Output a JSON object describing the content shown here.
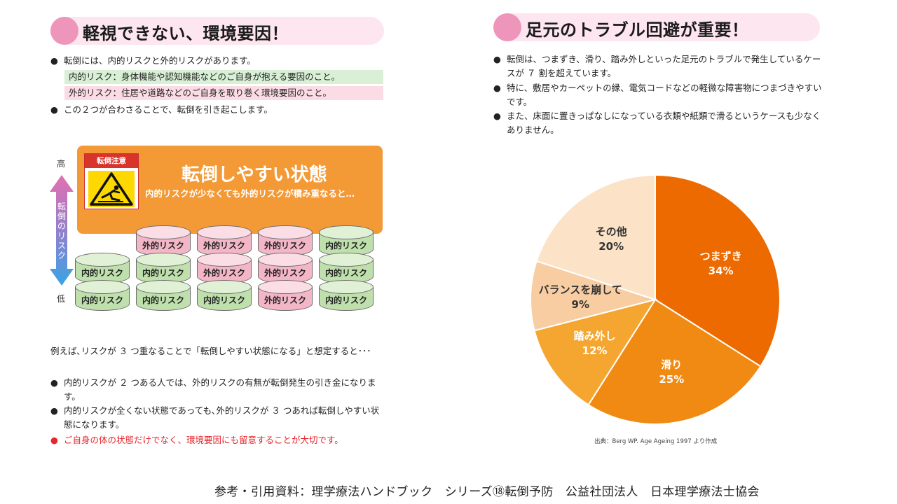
{
  "left": {
    "header": {
      "title": "軽視できない、環境要因！"
    },
    "intro": {
      "bullet1": "転倒には、内的リスクと外的リスクがあります。",
      "internal_def": "内的リスク：身体機能や認知機能などのご自身が抱える要因のこと。",
      "external_def": "外的リスク：住居や道路などのご自身を取り巻く環境要因のこと。",
      "bullet2": "この２つが合わさることで、転倒を引き起こします。"
    },
    "diagram": {
      "axis_high": "高",
      "axis_low": "低",
      "axis_label": "転倒のリスク",
      "warning_sign": "転倒注意",
      "panel_title": "転倒しやすい状態",
      "panel_subtitle": "内的リスクが少なくても外的リスクが積み重なると…",
      "stacks": [
        [
          "内的リスク",
          "内的リスク"
        ],
        [
          "内的リスク",
          "内的リスク",
          "外的リスク"
        ],
        [
          "内的リスク",
          "外的リスク",
          "外的リスク"
        ],
        [
          "外的リスク",
          "外的リスク",
          "外的リスク"
        ],
        [
          "内的リスク",
          "内的リスク",
          "内的リスク"
        ]
      ]
    },
    "example": "例えば､リスクが ３ つ重なることで「転倒しやすい状態になる」と想定すると･･･",
    "conclusions": [
      "内的リスクが ２ つある人では、外的リスクの有無が転倒発生の引き金になります。",
      "内的リスクが全くない状態であっても､外的リスクが ３ つあれば転倒しやすい状態になります。"
    ],
    "emphasis": "ご自身の体の状態だけでなく、環境要因にも留意することが大切です。"
  },
  "right": {
    "header": {
      "title": "足元のトラブル回避が重要！"
    },
    "bullets": [
      "転倒は、つまずき、滑り、踏み外しといった足元のトラブルで発生しているケースが ７ 割を超えています。",
      "特に、敷居やカーペットの縁、電気コードなどの軽微な障害物につまづきやすいです。",
      "また、床面に置きっぱなしになっている衣類や紙類で滑るというケースも少なくありません。"
    ],
    "source": "出典：Berg WP. Age Ageing 1997 より作成"
  },
  "chart_data": {
    "type": "pie",
    "slices": [
      {
        "label": "つまずき",
        "value": 34,
        "value_text": "34%",
        "color": "#ec6a00"
      },
      {
        "label": "滑り",
        "value": 25,
        "value_text": "25%",
        "color": "#f08a12"
      },
      {
        "label": "踏み外し",
        "value": 12,
        "value_text": "12%",
        "color": "#f5a630"
      },
      {
        "label": "バランスを崩して",
        "value": 9,
        "value_text": "9%",
        "color": "#f9cda2"
      },
      {
        "label": "その他",
        "value": 20,
        "value_text": "20%",
        "color": "#fce3c8"
      }
    ]
  },
  "footer": "参考・引用資料：理学療法ハンドブック　シリーズ⑱転倒予防　公益社団法人　日本理学療法士協会",
  "bullet_mark": "●"
}
